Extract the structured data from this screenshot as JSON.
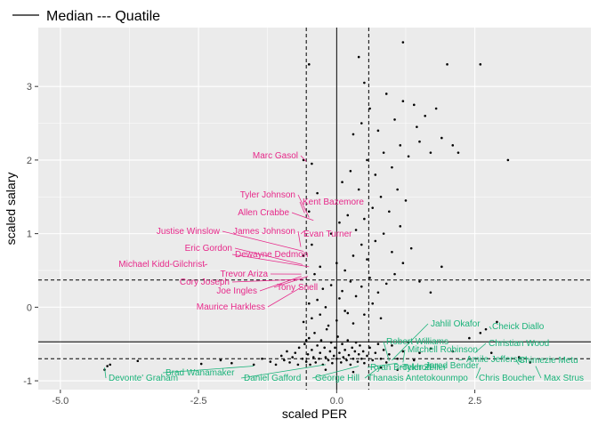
{
  "chart_data": {
    "type": "scatter",
    "legend": {
      "position": "top-left",
      "text": "Median --- Quatile"
    },
    "xlabel": "scaled PER",
    "ylabel": "scaled salary",
    "xlim": [
      -5.4,
      4.6
    ],
    "ylim": [
      -1.12,
      3.8
    ],
    "x_ticks": [
      -5.0,
      -2.5,
      0.0,
      2.5
    ],
    "x_tick_labels": [
      "-5.0",
      "-2.5",
      "0.0",
      "2.5"
    ],
    "y_ticks": [
      -1,
      0,
      1,
      2,
      3
    ],
    "y_tick_labels": [
      "-1",
      "0",
      "1",
      "2",
      "3"
    ],
    "grid": true,
    "colors": {
      "panel": "#ebebeb",
      "grid": "#ffffff",
      "high_salary_label": "#e7298a",
      "low_salary_label": "#1bb37a",
      "points": "#000000"
    },
    "reference_lines": {
      "median_x": 0.0,
      "quartiles_x": [
        -0.55,
        0.58
      ],
      "median_y": -0.47,
      "quartiles_y": [
        -0.7,
        0.37
      ]
    },
    "points": [
      [
        -4.2,
        -0.85
      ],
      [
        -4.15,
        -0.8
      ],
      [
        -4.1,
        -0.78
      ],
      [
        -3.6,
        -0.73
      ],
      [
        -2.45,
        -0.77
      ],
      [
        -2.1,
        -0.72
      ],
      [
        -1.9,
        -0.76
      ],
      [
        -1.5,
        -0.78
      ],
      [
        -1.35,
        -0.7
      ],
      [
        -1.2,
        -0.74
      ],
      [
        -1.1,
        -0.78
      ],
      [
        -1.0,
        -0.66
      ],
      [
        -0.95,
        -0.72
      ],
      [
        -0.9,
        -0.6
      ],
      [
        -0.85,
        -0.75
      ],
      [
        -0.8,
        -0.68
      ],
      [
        -0.75,
        -0.62
      ],
      [
        -0.7,
        -0.78
      ],
      [
        -0.68,
        -0.55
      ],
      [
        -0.62,
        -0.7
      ],
      [
        -0.58,
        -0.5
      ],
      [
        -0.55,
        -0.74
      ],
      [
        -0.52,
        -0.64
      ],
      [
        -0.5,
        -0.42
      ],
      [
        -0.48,
        -0.78
      ],
      [
        -0.45,
        -0.58
      ],
      [
        -0.42,
        -0.68
      ],
      [
        -0.4,
        -0.35
      ],
      [
        -0.38,
        -0.75
      ],
      [
        -0.35,
        -0.52
      ],
      [
        -0.32,
        -0.7
      ],
      [
        -0.3,
        -0.62
      ],
      [
        -0.28,
        -0.45
      ],
      [
        -0.25,
        -0.78
      ],
      [
        -0.22,
        -0.55
      ],
      [
        -0.2,
        -0.68
      ],
      [
        -0.18,
        -0.3
      ],
      [
        -0.15,
        -0.72
      ],
      [
        -0.12,
        -0.6
      ],
      [
        -0.1,
        -0.48
      ],
      [
        -0.08,
        -0.76
      ],
      [
        -0.05,
        -0.66
      ],
      [
        -0.03,
        -0.55
      ],
      [
        0.0,
        -0.7
      ],
      [
        0.02,
        -0.4
      ],
      [
        0.05,
        -0.62
      ],
      [
        0.08,
        -0.75
      ],
      [
        0.1,
        -0.5
      ],
      [
        0.12,
        -0.68
      ],
      [
        0.15,
        -0.58
      ],
      [
        0.18,
        -0.72
      ],
      [
        0.2,
        -0.45
      ],
      [
        0.22,
        -0.65
      ],
      [
        0.25,
        -0.78
      ],
      [
        0.28,
        -0.55
      ],
      [
        0.3,
        -0.7
      ],
      [
        0.33,
        -0.6
      ],
      [
        0.35,
        -0.48
      ],
      [
        0.38,
        -0.74
      ],
      [
        0.4,
        -0.64
      ],
      [
        0.42,
        -0.52
      ],
      [
        0.45,
        -0.7
      ],
      [
        0.48,
        -0.6
      ],
      [
        0.5,
        -0.76
      ],
      [
        0.55,
        -0.66
      ],
      [
        0.6,
        -0.55
      ],
      [
        0.65,
        -0.72
      ],
      [
        0.7,
        -0.62
      ],
      [
        0.75,
        -0.5
      ],
      [
        0.8,
        -0.7
      ],
      [
        0.85,
        -0.58
      ],
      [
        0.9,
        -0.75
      ],
      [
        0.95,
        -0.64
      ],
      [
        1.0,
        -0.52
      ],
      [
        1.1,
        -0.7
      ],
      [
        1.2,
        -0.6
      ],
      [
        1.3,
        -0.48
      ],
      [
        1.4,
        -0.72
      ],
      [
        1.5,
        -0.62
      ],
      [
        1.7,
        -0.56
      ],
      [
        -0.6,
        -0.2
      ],
      [
        -0.45,
        -0.15
      ],
      [
        -0.3,
        -0.1
      ],
      [
        -0.15,
        -0.25
      ],
      [
        0.0,
        -0.18
      ],
      [
        0.15,
        -0.05
      ],
      [
        0.3,
        -0.22
      ],
      [
        -0.5,
        0.05
      ],
      [
        -0.35,
        0.1
      ],
      [
        -0.2,
        0.0
      ],
      [
        0.05,
        0.12
      ],
      [
        0.2,
        -0.08
      ],
      [
        0.35,
        0.15
      ],
      [
        0.5,
        -0.1
      ],
      [
        0.65,
        0.05
      ],
      [
        0.8,
        -0.15
      ],
      [
        -0.25,
        0.25
      ],
      [
        -0.1,
        0.3
      ],
      [
        0.1,
        0.22
      ],
      [
        0.25,
        0.35
      ],
      [
        0.45,
        0.28
      ],
      [
        0.6,
        0.4
      ],
      [
        0.75,
        0.2
      ],
      [
        0.9,
        0.32
      ],
      [
        1.05,
        0.45
      ],
      [
        1.2,
        0.6
      ],
      [
        1.35,
        0.8
      ],
      [
        1.5,
        0.35
      ],
      [
        1.7,
        0.2
      ],
      [
        1.9,
        0.55
      ],
      [
        -0.4,
        0.45
      ],
      [
        -0.3,
        0.55
      ],
      [
        0.0,
        0.6
      ],
      [
        0.15,
        0.5
      ],
      [
        0.3,
        0.7
      ],
      [
        0.45,
        0.85
      ],
      [
        0.55,
        0.65
      ],
      [
        0.7,
        0.9
      ],
      [
        0.85,
        1.0
      ],
      [
        1.0,
        0.75
      ],
      [
        1.15,
        1.1
      ],
      [
        -0.6,
        0.7
      ],
      [
        -0.45,
        0.85
      ],
      [
        -0.1,
        1.0
      ],
      [
        0.05,
        1.15
      ],
      [
        0.2,
        1.25
      ],
      [
        0.35,
        1.05
      ],
      [
        0.5,
        1.2
      ],
      [
        0.65,
        1.35
      ],
      [
        0.8,
        1.5
      ],
      [
        0.95,
        1.3
      ],
      [
        1.1,
        1.6
      ],
      [
        1.25,
        1.45
      ],
      [
        -0.5,
        1.3
      ],
      [
        -0.35,
        1.55
      ],
      [
        0.1,
        1.7
      ],
      [
        0.25,
        1.85
      ],
      [
        0.4,
        1.6
      ],
      [
        0.55,
        2.0
      ],
      [
        0.7,
        1.8
      ],
      [
        0.85,
        2.1
      ],
      [
        1.0,
        1.9
      ],
      [
        1.15,
        2.2
      ],
      [
        1.3,
        2.05
      ],
      [
        1.5,
        2.25
      ],
      [
        1.7,
        2.1
      ],
      [
        -0.6,
        2.0
      ],
      [
        -0.45,
        1.95
      ],
      [
        0.3,
        2.35
      ],
      [
        0.45,
        2.5
      ],
      [
        0.6,
        2.7
      ],
      [
        0.75,
        2.4
      ],
      [
        0.9,
        2.9
      ],
      [
        1.05,
        2.55
      ],
      [
        1.2,
        2.8
      ],
      [
        1.4,
        2.75
      ],
      [
        1.6,
        2.6
      ],
      [
        1.8,
        2.7
      ],
      [
        1.9,
        2.3
      ],
      [
        2.1,
        2.2
      ],
      [
        2.2,
        2.1
      ],
      [
        2.0,
        3.3
      ],
      [
        2.6,
        3.3
      ],
      [
        3.1,
        2.0
      ],
      [
        -0.5,
        3.3
      ],
      [
        0.4,
        3.4
      ],
      [
        1.2,
        3.6
      ],
      [
        0.5,
        3.05
      ],
      [
        1.45,
        2.45
      ],
      [
        -0.55,
        -0.45
      ],
      [
        -0.2,
        -0.85
      ],
      [
        0.3,
        -0.88
      ],
      [
        0.8,
        -0.82
      ],
      [
        1.1,
        -0.85
      ],
      [
        2.1,
        -0.6
      ],
      [
        2.4,
        -0.42
      ],
      [
        2.6,
        -0.35
      ],
      [
        2.7,
        -0.3
      ],
      [
        2.8,
        -0.62
      ],
      [
        3.3,
        -0.68
      ],
      [
        3.5,
        -0.75
      ],
      [
        2.9,
        -0.2
      ]
    ],
    "annotations_high": [
      {
        "text": "Marc Gasol",
        "x": -0.55,
        "y": 1.98
      },
      {
        "text": "Tyler Johnson",
        "x": -0.5,
        "y": 1.22
      },
      {
        "text": "Kent Bazemore",
        "x": -0.58,
        "y": 1.28
      },
      {
        "text": "Allen Crabbe",
        "x": -0.42,
        "y": 1.18
      },
      {
        "text": "Justise Winslow",
        "x": -0.6,
        "y": 0.76
      },
      {
        "text": "James Johnson",
        "x": -0.65,
        "y": 0.82
      },
      {
        "text": "Evan Turner",
        "x": -0.58,
        "y": 1.04
      },
      {
        "text": "Eric Gordon",
        "x": -0.62,
        "y": 0.58
      },
      {
        "text": "Dewayne Dedmon",
        "x": -0.5,
        "y": 0.55
      },
      {
        "text": "Michael Kidd-Gilchrist",
        "x": -2.4,
        "y": 0.57
      },
      {
        "text": "Trevor Ariza",
        "x": -0.64,
        "y": 0.45
      },
      {
        "text": "Cory Joseph",
        "x": -0.62,
        "y": 0.38
      },
      {
        "text": "Tony Snell",
        "x": -0.52,
        "y": 0.42
      },
      {
        "text": "Joe Ingles",
        "x": -0.64,
        "y": 0.42
      },
      {
        "text": "Maurice Harkless",
        "x": -0.62,
        "y": 0.28
      }
    ],
    "annotations_low": [
      {
        "text": "Jahlil Okafor",
        "x": 1.0,
        "y": -0.72
      },
      {
        "text": "Cheick Diallo",
        "x": 2.8,
        "y": -0.3
      },
      {
        "text": "Robert Williams",
        "x": 0.95,
        "y": -0.73
      },
      {
        "text": "Mitchell Robinson",
        "x": 1.2,
        "y": -0.75
      },
      {
        "text": "Christian Wood",
        "x": 2.5,
        "y": -0.62
      },
      {
        "text": "Amile Jefferson",
        "x": 2.2,
        "y": -0.72
      },
      {
        "text": "Chimezie Metu",
        "x": 3.3,
        "y": -0.78
      },
      {
        "text": "Ryan Broekhoff",
        "x": 1.1,
        "y": -0.76
      },
      {
        "text": "Tyler Zeller",
        "x": 1.3,
        "y": -0.78
      },
      {
        "text": "Jared Bender",
        "x": 1.5,
        "y": -0.79
      },
      {
        "text": "Devonte' Graham",
        "x": -4.2,
        "y": -0.82
      },
      {
        "text": "Brad Wanamaker",
        "x": -1.5,
        "y": -0.8
      },
      {
        "text": "Daniel Gafford",
        "x": -0.2,
        "y": -0.78
      },
      {
        "text": "George Hill",
        "x": 0.4,
        "y": -0.8
      },
      {
        "text": "Thanasis Antetokounmpo",
        "x": 0.8,
        "y": -0.8
      },
      {
        "text": "Chris Boucher",
        "x": 2.6,
        "y": -0.82
      },
      {
        "text": "Max Strus",
        "x": 3.6,
        "y": -0.8
      }
    ]
  }
}
